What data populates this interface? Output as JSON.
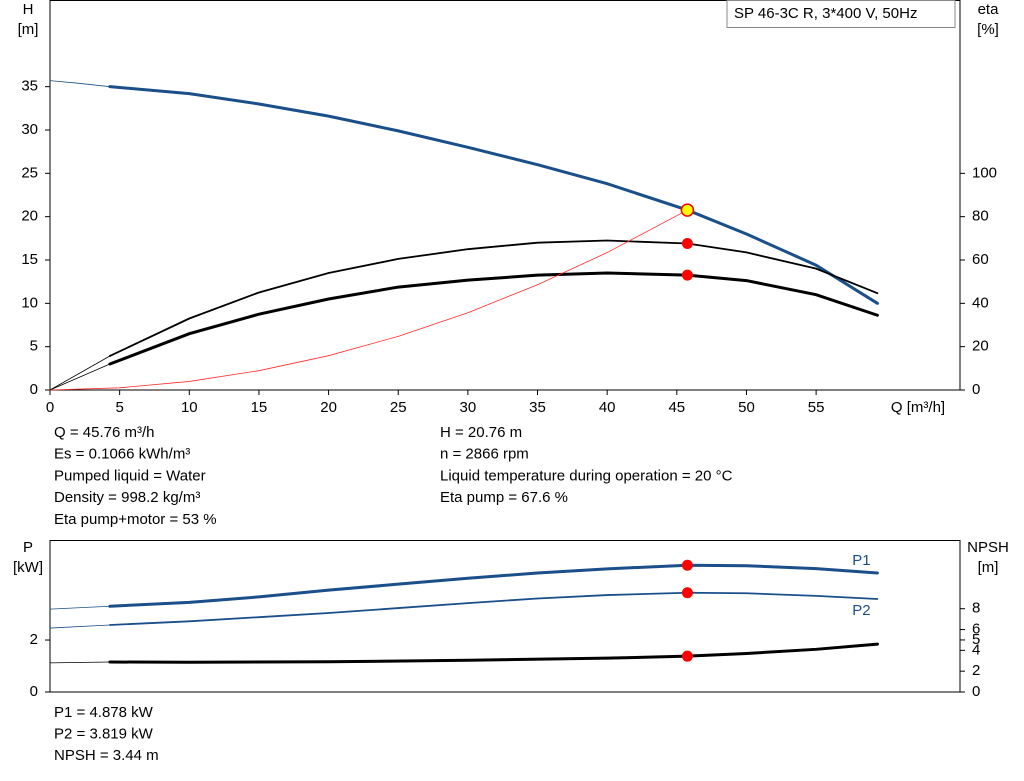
{
  "chart_data": [
    {
      "type": "line",
      "title": "SP 46-3C R, 3*400 V, 50Hz",
      "xlabel": "Q [m³/h]",
      "ylabel": "H",
      "yunit": "[m]",
      "y2label": "eta",
      "y2unit": "[%]",
      "xlim": [
        0,
        65.33
      ],
      "xticks": [
        0,
        5,
        10,
        15,
        20,
        25,
        30,
        35,
        40,
        45,
        50,
        55
      ],
      "ylim": [
        0,
        45
      ],
      "yticks": [
        0,
        5,
        10,
        15,
        20,
        25,
        30,
        35
      ],
      "y2lim": [
        0,
        180
      ],
      "y2ticks": [
        0,
        20,
        40,
        60,
        80,
        100
      ],
      "series": [
        {
          "color": "#1a4f8a",
          "linewidth": 0.8,
          "x": [
            0,
            2,
            4.3
          ],
          "values": [
            35.7,
            35.4,
            35
          ]
        },
        {
          "color": "#1a4f8a",
          "linewidth": 3,
          "x": [
            4.3,
            10,
            15,
            20,
            25,
            30,
            35,
            40,
            45.76,
            50,
            55,
            59.4
          ],
          "values": [
            35,
            34.2,
            33,
            31.6,
            29.9,
            28,
            26,
            23.8,
            20.76,
            18,
            14.4,
            10
          ]
        },
        {
          "color": "#000000",
          "linewidth": 0.8,
          "axis": "y2",
          "x": [
            0,
            4.3
          ],
          "values": [
            0,
            15.7
          ]
        },
        {
          "color": "#000000",
          "linewidth": 1.8,
          "axis": "y2",
          "x": [
            4.3,
            10,
            15,
            20,
            25,
            30,
            35,
            40,
            45.76,
            50,
            55,
            59.4
          ],
          "values": [
            15.7,
            33,
            45,
            54,
            60.5,
            65,
            68,
            69,
            67.6,
            63.5,
            56,
            44.7
          ]
        },
        {
          "color": "#000000",
          "linewidth": 0.8,
          "axis": "y2",
          "x": [
            0,
            4.3
          ],
          "values": [
            0,
            12
          ]
        },
        {
          "color": "#000000",
          "linewidth": 3,
          "axis": "y2",
          "x": [
            4.3,
            10,
            15,
            20,
            25,
            30,
            35,
            40,
            45.76,
            50,
            55,
            59.4
          ],
          "values": [
            12,
            26,
            35,
            42,
            47.5,
            50.7,
            53,
            54,
            53,
            50.5,
            44,
            34.5
          ]
        },
        {
          "color": "#ff2a2a",
          "linewidth": 0.8,
          "x": [
            0,
            5,
            10,
            15,
            20,
            25,
            30,
            35,
            40,
            45.76
          ],
          "values": [
            0,
            0.25,
            0.99,
            2.23,
            3.96,
            6.19,
            8.92,
            12.14,
            15.86,
            20.76
          ]
        }
      ],
      "markers": [
        {
          "x": 45.76,
          "y": 20.76,
          "color": "#ffff00",
          "edge": "#ff0000"
        },
        {
          "x": 45.76,
          "y": 67.6,
          "axis": "y2",
          "color": "#ff0000"
        },
        {
          "x": 45.76,
          "y": 53,
          "axis": "y2",
          "color": "#ff0000"
        }
      ],
      "annotations": [
        "Q = 45.76 m³/h",
        "Es = 0.1066 kWh/m³",
        "Pumped liquid = Water",
        "Density = 998.2 kg/m³",
        "Eta pump+motor = 53 %",
        "H = 20.76 m",
        "n = 2866 rpm",
        "Liquid temperature during operation = 20 °C",
        "Eta pump = 67.6 %"
      ]
    },
    {
      "type": "line",
      "ylabel": "P",
      "yunit": "[kW]",
      "y2label": "NPSH",
      "y2unit": "[m]",
      "xlim": [
        0,
        65.33
      ],
      "ylim": [
        0,
        5.85
      ],
      "yticks": [
        0,
        2
      ],
      "y2lim": [
        0,
        14.6
      ],
      "y2ticks": [
        0,
        2,
        4,
        5,
        6,
        8
      ],
      "series": [
        {
          "color": "#1a4f8a",
          "linewidth": 0.8,
          "x": [
            0,
            4.3
          ],
          "values": [
            3.19,
            3.3
          ]
        },
        {
          "name": "P1",
          "color": "#1a4f8a",
          "linewidth": 3,
          "x": [
            4.3,
            10,
            15,
            20,
            25,
            30,
            35,
            40,
            45.76,
            50,
            55,
            59.4
          ],
          "values": [
            3.3,
            3.45,
            3.66,
            3.92,
            4.15,
            4.38,
            4.58,
            4.74,
            4.878,
            4.86,
            4.75,
            4.58
          ]
        },
        {
          "color": "#1a4f8a",
          "linewidth": 0.8,
          "x": [
            0,
            4.3
          ],
          "values": [
            2.46,
            2.58
          ]
        },
        {
          "name": "P2",
          "color": "#1a4f8a",
          "linewidth": 1.8,
          "x": [
            4.3,
            10,
            15,
            20,
            25,
            30,
            35,
            40,
            45.76,
            50,
            55,
            59.4
          ],
          "values": [
            2.58,
            2.72,
            2.88,
            3.04,
            3.23,
            3.42,
            3.6,
            3.73,
            3.819,
            3.8,
            3.7,
            3.58
          ]
        },
        {
          "color": "#000000",
          "linewidth": 0.8,
          "axis": "y2",
          "x": [
            0,
            4.3
          ],
          "values": [
            2.8,
            2.88
          ]
        },
        {
          "color": "#000000",
          "linewidth": 3,
          "axis": "y2",
          "x": [
            4.3,
            10,
            20,
            30,
            40,
            45.76,
            50,
            55,
            59.4
          ],
          "values": [
            2.88,
            2.86,
            2.9,
            3.05,
            3.25,
            3.44,
            3.7,
            4.1,
            4.6
          ]
        }
      ],
      "markers": [
        {
          "x": 45.76,
          "y": 4.878,
          "color": "#ff0000"
        },
        {
          "x": 45.76,
          "y": 3.819,
          "color": "#ff0000"
        },
        {
          "x": 45.76,
          "y": 3.44,
          "axis": "y2",
          "color": "#ff0000"
        }
      ],
      "annotations": [
        "P1 = 4.878 kW",
        "P2 = 3.819 kW",
        "NPSH = 3.44 m"
      ]
    }
  ]
}
